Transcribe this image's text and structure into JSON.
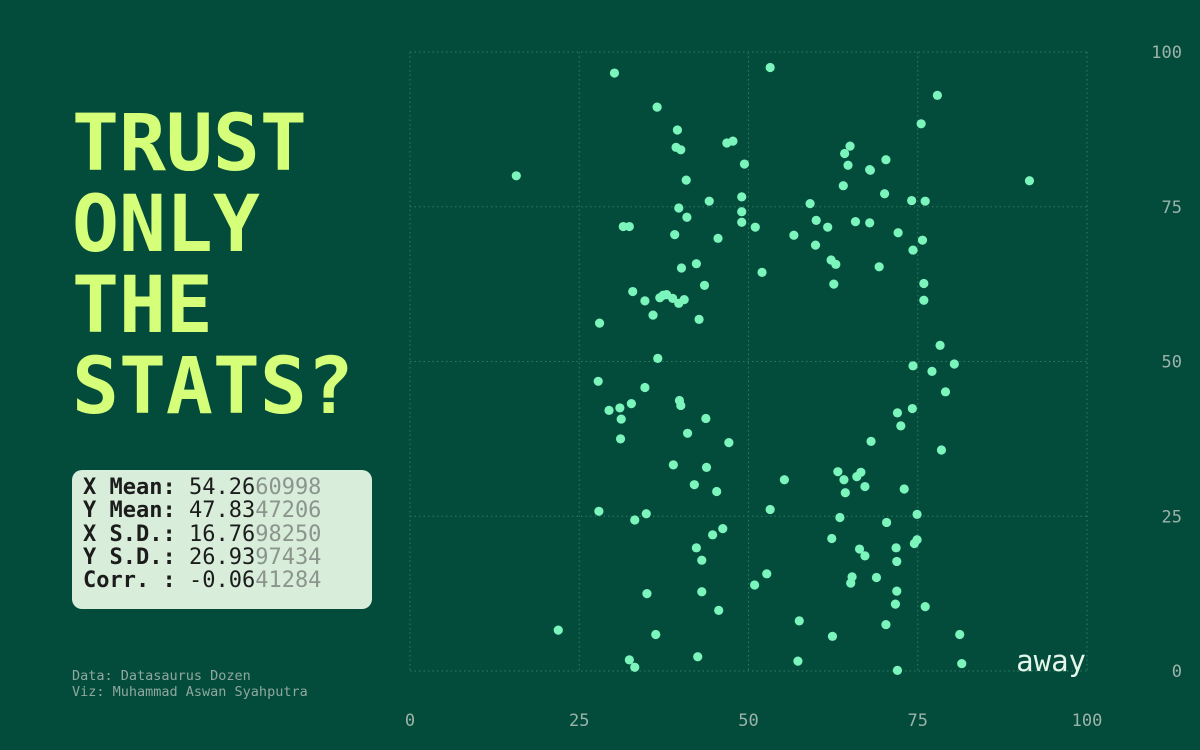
{
  "title_lines": [
    "TRUST",
    "ONLY",
    "THE",
    "STATS?"
  ],
  "stats": [
    {
      "label": "X Mean: ",
      "bright": "54.26",
      "dim": "60998"
    },
    {
      "label": "Y Mean: ",
      "bright": "47.83",
      "dim": "47206"
    },
    {
      "label": "X S.D.: ",
      "bright": "16.76",
      "dim": "98250"
    },
    {
      "label": "Y S.D.: ",
      "bright": "26.93",
      "dim": "97434"
    },
    {
      "label": "Corr. : ",
      "bright": "-0.06",
      "dim": "41284"
    }
  ],
  "credits": {
    "data": "Data: Datasaurus Dozen",
    "viz": "Viz: Muhammad Aswan Syahputra"
  },
  "colors": {
    "background": "#034c3c",
    "points": "#7cf5bd",
    "title": "#d6ff79",
    "stats_box": "#d8eedb"
  },
  "chart_data": {
    "type": "scatter",
    "title": "",
    "xlabel": "",
    "ylabel": "",
    "xlim": [
      0,
      100
    ],
    "ylim": [
      0,
      100
    ],
    "x_ticks": [
      "0",
      "25",
      "50",
      "75",
      "100"
    ],
    "y_ticks": [
      "0",
      "25",
      "50",
      "75",
      "100"
    ],
    "grid": true,
    "annotation": "away",
    "series": [
      {
        "points": [
          [
            30.2,
            96.6
          ],
          [
            53.2,
            97.5
          ],
          [
            77.9,
            93.0
          ],
          [
            36.5,
            91.1
          ],
          [
            75.5,
            88.4
          ],
          [
            39.5,
            87.4
          ],
          [
            47.7,
            85.6
          ],
          [
            46.8,
            85.3
          ],
          [
            65.0,
            84.8
          ],
          [
            39.3,
            84.6
          ],
          [
            40.0,
            84.2
          ],
          [
            64.2,
            83.6
          ],
          [
            70.3,
            82.6
          ],
          [
            49.4,
            81.9
          ],
          [
            64.7,
            81.7
          ],
          [
            67.9,
            81.0
          ],
          [
            68.0,
            80.9
          ],
          [
            15.7,
            80.0
          ],
          [
            40.8,
            79.3
          ],
          [
            91.5,
            79.2
          ],
          [
            64.0,
            78.4
          ],
          [
            70.1,
            77.1
          ],
          [
            49.0,
            76.6
          ],
          [
            44.2,
            75.9
          ],
          [
            74.1,
            76.0
          ],
          [
            76.1,
            75.9
          ],
          [
            59.1,
            75.5
          ],
          [
            39.7,
            74.8
          ],
          [
            49.0,
            74.2
          ],
          [
            40.9,
            73.3
          ],
          [
            60.0,
            72.8
          ],
          [
            65.8,
            72.6
          ],
          [
            67.9,
            72.4
          ],
          [
            49.0,
            72.5
          ],
          [
            31.5,
            71.8
          ],
          [
            32.4,
            71.8
          ],
          [
            51.0,
            71.7
          ],
          [
            61.7,
            71.7
          ],
          [
            72.1,
            70.8
          ],
          [
            39.1,
            70.5
          ],
          [
            56.7,
            70.4
          ],
          [
            45.5,
            69.9
          ],
          [
            75.7,
            69.6
          ],
          [
            59.9,
            68.8
          ],
          [
            74.3,
            68.0
          ],
          [
            62.2,
            66.4
          ],
          [
            62.9,
            65.7
          ],
          [
            42.3,
            65.8
          ],
          [
            40.1,
            65.1
          ],
          [
            69.3,
            65.3
          ],
          [
            52.0,
            64.4
          ],
          [
            75.9,
            62.6
          ],
          [
            62.6,
            62.5
          ],
          [
            43.5,
            62.3
          ],
          [
            32.9,
            61.3
          ],
          [
            37.4,
            60.7
          ],
          [
            37.9,
            60.8
          ],
          [
            36.9,
            60.3
          ],
          [
            38.8,
            60.2
          ],
          [
            40.5,
            60.0
          ],
          [
            34.7,
            59.8
          ],
          [
            39.7,
            59.4
          ],
          [
            75.9,
            59.9
          ],
          [
            35.9,
            57.5
          ],
          [
            42.7,
            56.8
          ],
          [
            28.0,
            56.2
          ],
          [
            78.3,
            52.6
          ],
          [
            36.6,
            50.5
          ],
          [
            80.4,
            49.6
          ],
          [
            74.3,
            49.3
          ],
          [
            77.1,
            48.4
          ],
          [
            27.8,
            46.8
          ],
          [
            34.7,
            45.8
          ],
          [
            79.1,
            45.1
          ],
          [
            39.8,
            43.7
          ],
          [
            32.7,
            43.2
          ],
          [
            40.0,
            42.9
          ],
          [
            31.0,
            42.5
          ],
          [
            29.4,
            42.1
          ],
          [
            74.2,
            42.4
          ],
          [
            72.0,
            41.7
          ],
          [
            31.2,
            40.7
          ],
          [
            43.7,
            40.8
          ],
          [
            72.5,
            39.6
          ],
          [
            41.0,
            38.4
          ],
          [
            31.1,
            37.5
          ],
          [
            68.1,
            37.1
          ],
          [
            47.1,
            36.9
          ],
          [
            78.5,
            35.7
          ],
          [
            38.9,
            33.3
          ],
          [
            43.8,
            32.9
          ],
          [
            63.2,
            32.2
          ],
          [
            66.6,
            32.1
          ],
          [
            66.0,
            31.4
          ],
          [
            55.3,
            30.9
          ],
          [
            64.1,
            30.9
          ],
          [
            42.0,
            30.1
          ],
          [
            67.2,
            29.8
          ],
          [
            73.0,
            29.4
          ],
          [
            45.3,
            29.0
          ],
          [
            64.3,
            28.8
          ],
          [
            27.9,
            25.8
          ],
          [
            53.2,
            26.1
          ],
          [
            34.9,
            25.4
          ],
          [
            74.9,
            25.3
          ],
          [
            63.5,
            24.8
          ],
          [
            33.2,
            24.4
          ],
          [
            70.4,
            24.0
          ],
          [
            46.2,
            23.0
          ],
          [
            44.7,
            22.0
          ],
          [
            62.3,
            21.4
          ],
          [
            74.9,
            21.2
          ],
          [
            74.5,
            20.6
          ],
          [
            42.3,
            19.9
          ],
          [
            66.4,
            19.7
          ],
          [
            71.8,
            19.9
          ],
          [
            67.2,
            18.6
          ],
          [
            43.1,
            17.9
          ],
          [
            71.9,
            17.7
          ],
          [
            52.7,
            15.7
          ],
          [
            65.3,
            15.2
          ],
          [
            68.9,
            15.1
          ],
          [
            65.1,
            14.2
          ],
          [
            50.9,
            13.9
          ],
          [
            43.1,
            12.8
          ],
          [
            71.9,
            12.9
          ],
          [
            35.0,
            12.5
          ],
          [
            71.7,
            10.8
          ],
          [
            76.1,
            10.4
          ],
          [
            45.6,
            9.8
          ],
          [
            57.5,
            8.1
          ],
          [
            70.3,
            7.5
          ],
          [
            21.9,
            6.6
          ],
          [
            36.3,
            5.9
          ],
          [
            62.4,
            5.6
          ],
          [
            81.2,
            5.9
          ],
          [
            42.5,
            2.3
          ],
          [
            32.4,
            1.8
          ],
          [
            57.3,
            1.6
          ],
          [
            81.5,
            1.2
          ],
          [
            33.2,
            0.6
          ],
          [
            72.0,
            0.1
          ]
        ]
      }
    ]
  }
}
